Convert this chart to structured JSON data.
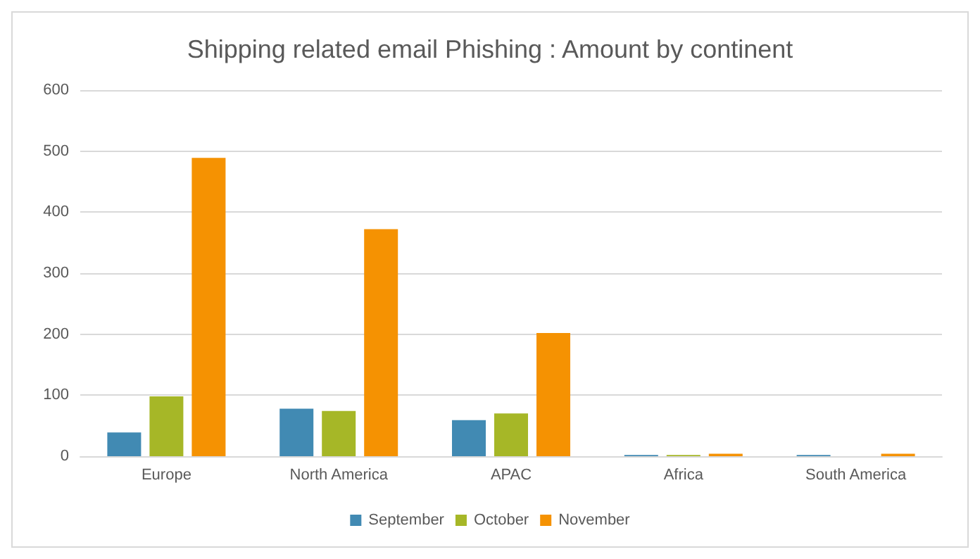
{
  "chart_data": {
    "type": "bar",
    "title": "Shipping related email Phishing : Amount by continent",
    "categories": [
      "Europe",
      "North America",
      "APAC",
      "Africa",
      "South America"
    ],
    "series": [
      {
        "name": "September",
        "color": "#418ab3",
        "values": [
          39,
          78,
          59,
          2,
          2
        ]
      },
      {
        "name": "October",
        "color": "#a6b727",
        "values": [
          98,
          74,
          70,
          2,
          0
        ]
      },
      {
        "name": "November",
        "color": "#f59202",
        "values": [
          489,
          372,
          202,
          4,
          4
        ]
      }
    ],
    "ylim": [
      0,
      600
    ],
    "yticks": [
      0,
      100,
      200,
      300,
      400,
      500,
      600
    ],
    "grid": "y",
    "legend": "bottom"
  }
}
